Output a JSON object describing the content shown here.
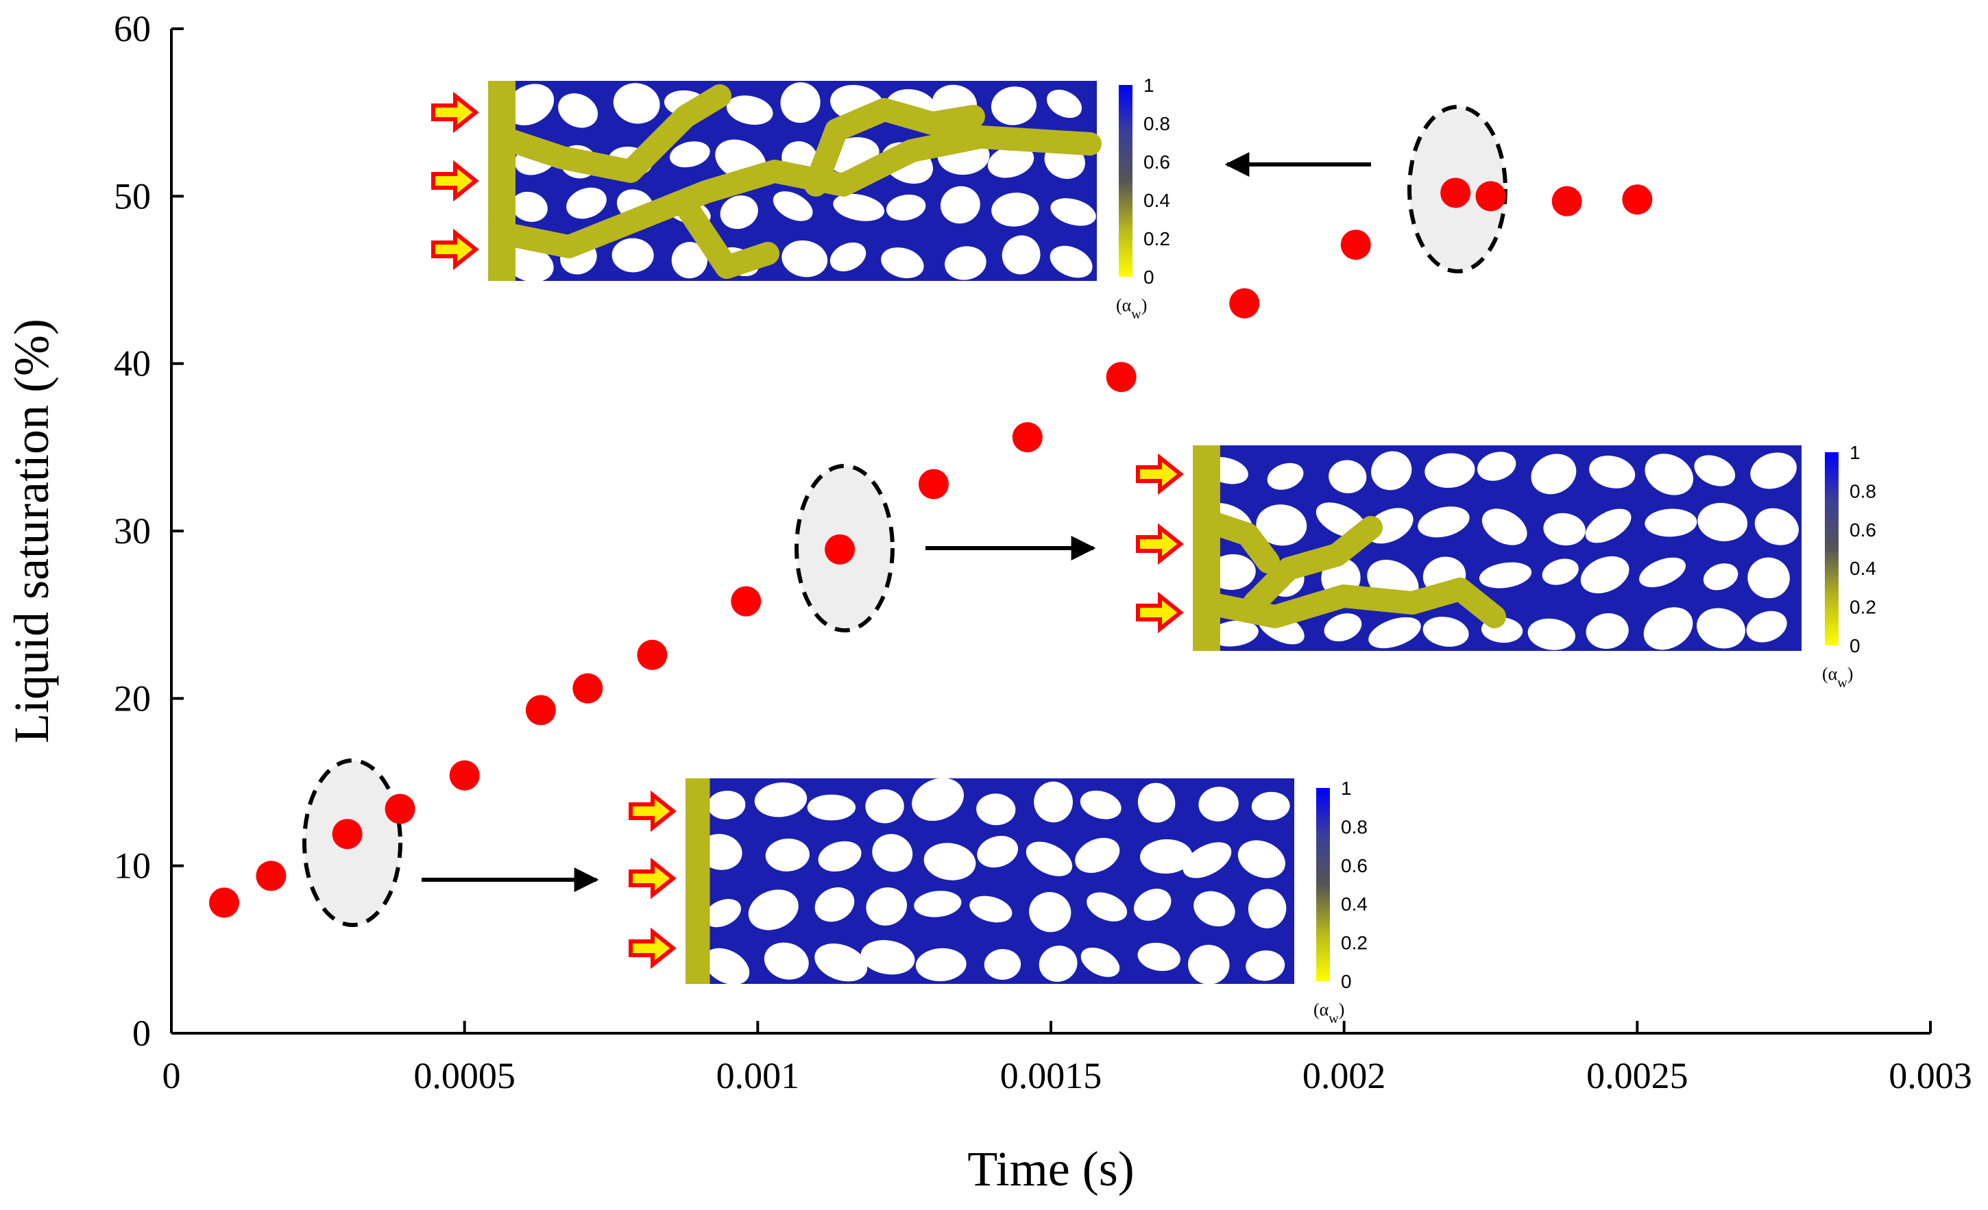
{
  "chart_data": {
    "type": "scatter",
    "title": "",
    "xlabel": "Time (s)",
    "ylabel": "Liquid saturation (%)",
    "xlim": [
      0,
      0.003
    ],
    "ylim": [
      0,
      60
    ],
    "x_ticks": [
      "0",
      "0.0005",
      "0.001",
      "0.0015",
      "0.002",
      "0.0025",
      "0.003"
    ],
    "y_ticks": [
      "0",
      "10",
      "20",
      "30",
      "40",
      "50",
      "60"
    ],
    "grid": false,
    "series": [
      {
        "color": "#ff0000",
        "points": [
          {
            "x": 9e-05,
            "y": 7.8
          },
          {
            "x": 0.00017,
            "y": 9.4
          },
          {
            "x": 0.0003,
            "y": 11.9
          },
          {
            "x": 0.00039,
            "y": 13.4
          },
          {
            "x": 0.0005,
            "y": 15.4
          },
          {
            "x": 0.00063,
            "y": 19.3
          },
          {
            "x": 0.00071,
            "y": 20.6
          },
          {
            "x": 0.00082,
            "y": 22.6
          },
          {
            "x": 0.00098,
            "y": 25.8
          },
          {
            "x": 0.00114,
            "y": 28.9
          },
          {
            "x": 0.0013,
            "y": 32.8
          },
          {
            "x": 0.00146,
            "y": 35.6
          },
          {
            "x": 0.00162,
            "y": 39.2
          },
          {
            "x": 0.00183,
            "y": 43.6
          },
          {
            "x": 0.00202,
            "y": 47.1
          },
          {
            "x": 0.00219,
            "y": 50.2
          },
          {
            "x": 0.00225,
            "y": 50.0
          },
          {
            "x": 0.00238,
            "y": 49.7
          },
          {
            "x": 0.0025,
            "y": 49.8
          }
        ]
      }
    ],
    "annotations": [
      {
        "type": "dashed-ellipse",
        "around_x": 0.0003,
        "around_y": 11.9
      },
      {
        "type": "dashed-ellipse",
        "around_x": 0.00114,
        "around_y": 28.9
      },
      {
        "type": "dashed-ellipse",
        "around_x": 0.00222,
        "around_y": 50.1
      }
    ],
    "insets": [
      {
        "name": "inset-early",
        "colorbar_ticks": [
          "1",
          "0.8",
          "0.6",
          "0.4",
          "0.2",
          "0"
        ],
        "colorbar_unit": "(α",
        "colorbar_unit_sub": "w",
        "colorbar_unit_close": ")"
      },
      {
        "name": "inset-middle",
        "colorbar_ticks": [
          "1",
          "0.8",
          "0.6",
          "0.4",
          "0.2",
          "0"
        ],
        "colorbar_unit": "(α",
        "colorbar_unit_sub": "w",
        "colorbar_unit_close": ")"
      },
      {
        "name": "inset-late",
        "colorbar_ticks": [
          "1",
          "0.8",
          "0.6",
          "0.4",
          "0.2",
          "0"
        ],
        "colorbar_unit": "(α",
        "colorbar_unit_sub": "w",
        "colorbar_unit_close": ")"
      }
    ],
    "colors": {
      "solid_phase": "#1a1fb0",
      "liquid_phase": "#b7b61c",
      "pore": "#ffffff",
      "inlet_arrow_fill": "#ffee00",
      "inlet_arrow_stroke": "#ff0000",
      "ellipse_fill": "#eeeeee"
    }
  }
}
